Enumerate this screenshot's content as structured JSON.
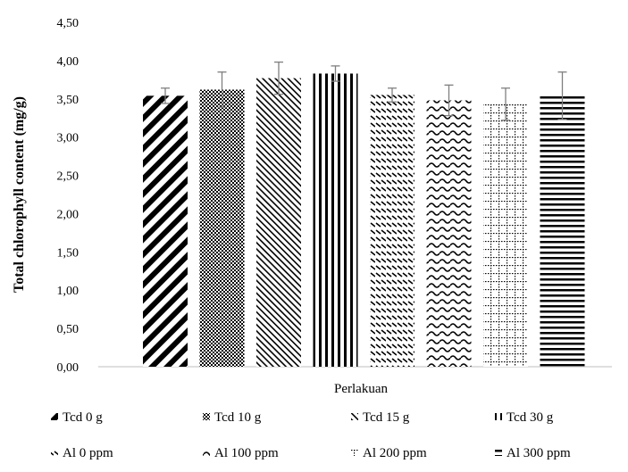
{
  "chart_data": {
    "type": "bar",
    "title": "",
    "xlabel": "Perlakuan",
    "ylabel": "Total chlorophyll content (mg/g)",
    "ylim": [
      0,
      4.5
    ],
    "yticks": [
      "0,00",
      "0,50",
      "1,00",
      "1,50",
      "2,00",
      "2,50",
      "3,00",
      "3,50",
      "4,00",
      "4,50"
    ],
    "grid": false,
    "legend_position": "bottom",
    "series": [
      {
        "name": "Tcd 0 g",
        "value": 3.54,
        "error": 0.1,
        "pattern": "diag-thick"
      },
      {
        "name": "Tcd 10 g",
        "value": 3.62,
        "error": 0.23,
        "pattern": "dots"
      },
      {
        "name": "Tcd 15 g",
        "value": 3.77,
        "error": 0.21,
        "pattern": "diag-thin"
      },
      {
        "name": "Tcd 30 g",
        "value": 3.83,
        "error": 0.1,
        "pattern": "vertical"
      },
      {
        "name": "Al 0 ppm",
        "value": 3.55,
        "error": 0.09,
        "pattern": "dashes"
      },
      {
        "name": "Al 100 ppm",
        "value": 3.48,
        "error": 0.2,
        "pattern": "wave"
      },
      {
        "name": "Al 200 ppm",
        "value": 3.43,
        "error": 0.21,
        "pattern": "grid-dotted"
      },
      {
        "name": "Al 300 ppm",
        "value": 3.54,
        "error": 0.31,
        "pattern": "horizontal"
      }
    ]
  }
}
